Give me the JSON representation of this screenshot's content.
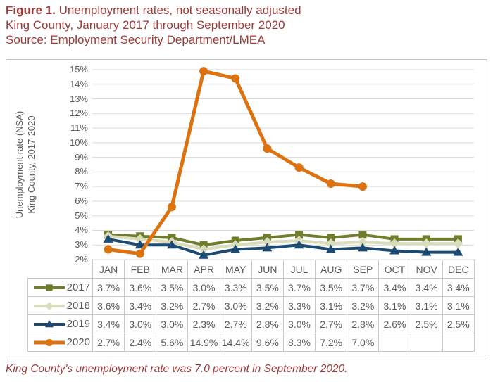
{
  "title": {
    "figure_label": "Figure 1.",
    "line1_rest": " Unemployment rates, not seasonally adjusted",
    "line2": "King County, January 2017 through September 2020",
    "line3": "Source: Employment Security Department/LMEA"
  },
  "caption": "King County's unemployment rate was 7.0 percent in September 2020.",
  "colors": {
    "title_text": "#9C3A38",
    "caption_text": "#9C3A38",
    "axis_text": "#595959",
    "table_text": "#595959",
    "gridline": "#D9D9D9",
    "table_border": "#C8C8C8",
    "series_2017": "#6F7D2C",
    "series_2018": "#D9DDBB",
    "series_2019": "#1B4A73",
    "series_2020": "#DC7210"
  },
  "chart_data": {
    "type": "line",
    "title": "",
    "ylabel_line1": "Unemployment rate (NSA)",
    "ylabel_line2": "King County, 2017-2020",
    "categories": [
      "JAN",
      "FEB",
      "MAR",
      "APR",
      "MAY",
      "JUN",
      "JUL",
      "AUG",
      "SEP",
      "OCT",
      "NOV",
      "DEC"
    ],
    "ylim": [
      2,
      15
    ],
    "ytick_step": 1,
    "ytick_labels": [
      "15%",
      "14%",
      "13%",
      "12%",
      "11%",
      "10%",
      "9%",
      "8%",
      "7%",
      "6%",
      "5%",
      "4%",
      "3%",
      "2%"
    ],
    "grid": true,
    "legend_position": "data-table-left",
    "value_suffix": "%",
    "series": [
      {
        "name": "2017",
        "marker": "square",
        "color_key": "series_2017",
        "values": [
          3.7,
          3.6,
          3.5,
          3.0,
          3.3,
          3.5,
          3.7,
          3.5,
          3.7,
          3.4,
          3.4,
          3.4
        ]
      },
      {
        "name": "2018",
        "marker": "diamond",
        "color_key": "series_2018",
        "values": [
          3.6,
          3.4,
          3.2,
          2.7,
          3.0,
          3.2,
          3.3,
          3.1,
          3.2,
          3.1,
          3.1,
          3.1
        ]
      },
      {
        "name": "2019",
        "marker": "triangle",
        "color_key": "series_2019",
        "values": [
          3.4,
          3.0,
          3.0,
          2.3,
          2.7,
          2.8,
          3.0,
          2.7,
          2.8,
          2.6,
          2.5,
          2.5
        ]
      },
      {
        "name": "2020",
        "marker": "circle",
        "color_key": "series_2020",
        "values": [
          2.7,
          2.4,
          5.6,
          14.9,
          14.4,
          9.6,
          8.3,
          7.2,
          7.0,
          null,
          null,
          null
        ]
      }
    ]
  }
}
